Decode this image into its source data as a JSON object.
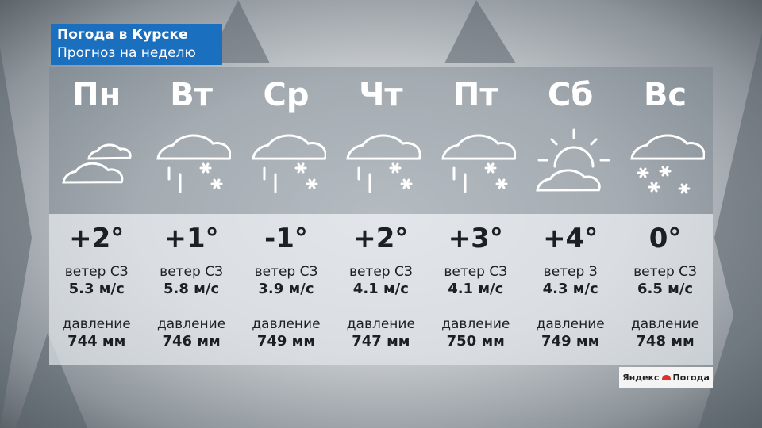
{
  "header": {
    "city_title": "Погода в Курске",
    "subtitle": "Прогноз на неделю"
  },
  "days": [
    {
      "day": "Пн",
      "icon": "cloudy-icon",
      "temp": "+2°",
      "wind_label": "ветер СЗ",
      "wind": "5.3 м/с",
      "pressure_label": "давление",
      "pressure": "744 мм"
    },
    {
      "day": "Вт",
      "icon": "rain-snow-icon",
      "temp": "+1°",
      "wind_label": "ветер СЗ",
      "wind": "5.8 м/с",
      "pressure_label": "давление",
      "pressure": "746 мм"
    },
    {
      "day": "Ср",
      "icon": "rain-snow-icon",
      "temp": "-1°",
      "wind_label": "ветер СЗ",
      "wind": "3.9 м/с",
      "pressure_label": "давление",
      "pressure": "749 мм"
    },
    {
      "day": "Чт",
      "icon": "rain-snow-icon",
      "temp": "+2°",
      "wind_label": "ветер СЗ",
      "wind": "4.1 м/с",
      "pressure_label": "давление",
      "pressure": "747 мм"
    },
    {
      "day": "Пт",
      "icon": "rain-snow-icon",
      "temp": "+3°",
      "wind_label": "ветер СЗ",
      "wind": "4.1 м/с",
      "pressure_label": "давление",
      "pressure": "750 мм"
    },
    {
      "day": "Сб",
      "icon": "partly-cloudy-icon",
      "temp": "+4°",
      "wind_label": "ветер З",
      "wind": "4.3 м/с",
      "pressure_label": "давление",
      "pressure": "749 мм"
    },
    {
      "day": "Вс",
      "icon": "snow-icon",
      "temp": "0°",
      "wind_label": "ветер СЗ",
      "wind": "6.5 м/с",
      "pressure_label": "давление",
      "pressure": "748 мм"
    }
  ],
  "logo": {
    "left": "Яндекс",
    "right": "Погода"
  },
  "colors": {
    "title_bg": "#1a6fbf",
    "umbrella": "#e0302a"
  }
}
